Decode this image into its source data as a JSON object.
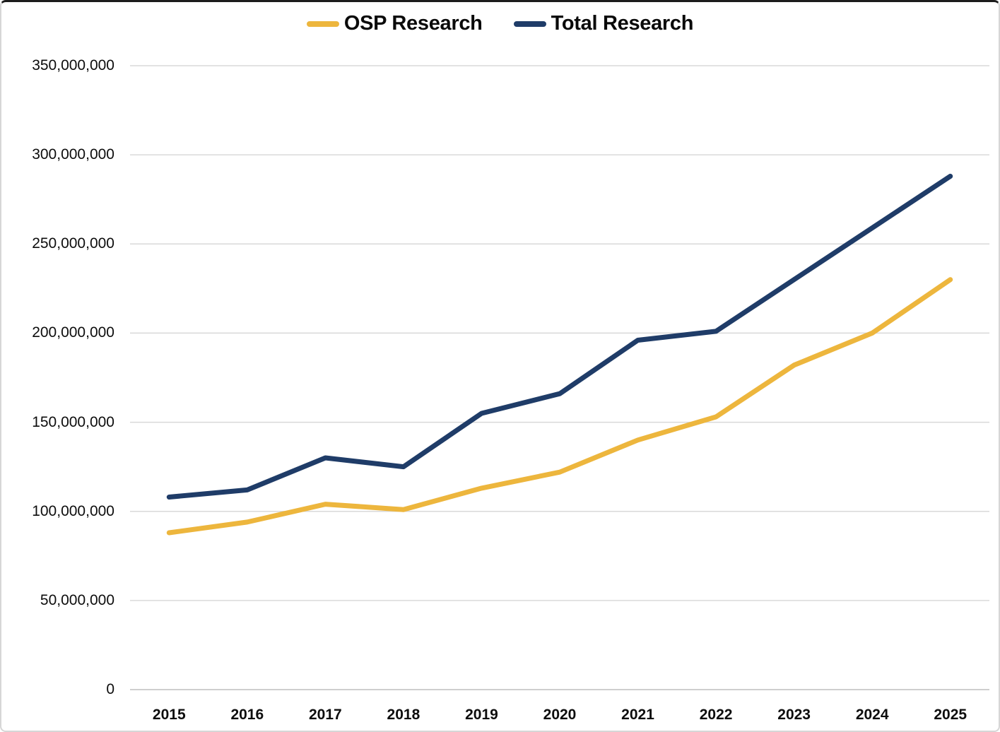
{
  "chart_data": {
    "type": "line",
    "title": "",
    "xlabel": "",
    "ylabel": "",
    "categories": [
      "2015",
      "2016",
      "2017",
      "2018",
      "2019",
      "2020",
      "2021",
      "2022",
      "2023",
      "2024",
      "2025"
    ],
    "series": [
      {
        "name": "OSP Research",
        "color": "#EDB63D",
        "values": [
          88000000,
          94000000,
          104000000,
          101000000,
          113000000,
          122000000,
          140000000,
          153000000,
          182000000,
          200000000,
          230000000
        ]
      },
      {
        "name": "Total Research",
        "color": "#1F3C68",
        "values": [
          108000000,
          112000000,
          130000000,
          125000000,
          155000000,
          166000000,
          196000000,
          201000000,
          230000000,
          259000000,
          288000000
        ]
      }
    ],
    "ylim": [
      0,
      350000000
    ],
    "ytick_step": 50000000,
    "ytick_labels": [
      "350,000,000",
      "300,000,000",
      "250,000,000",
      "200,000,000",
      "150,000,000",
      "100,000,000",
      "50,000,000",
      "0"
    ],
    "grid": true,
    "legend_position": "top-center",
    "style": {
      "gridline_color": "#D9D9D9",
      "axis_line_color": "#BFBFBF",
      "line_width": 7
    }
  }
}
